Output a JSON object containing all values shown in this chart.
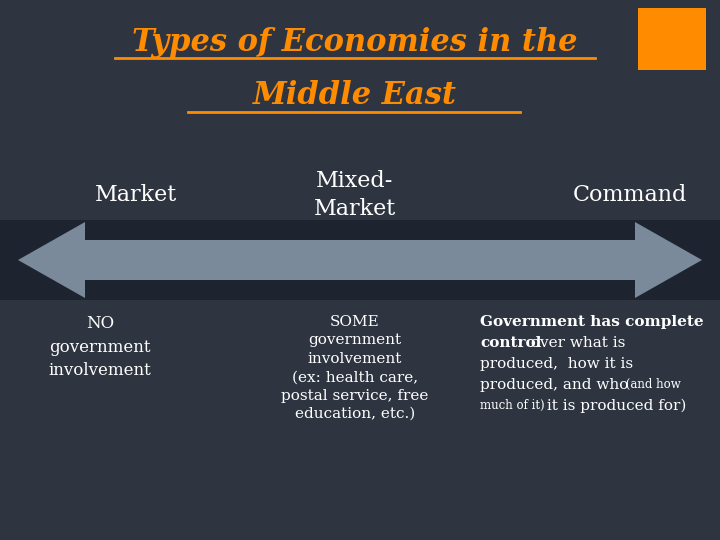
{
  "title_line1": "Types of Economies in the",
  "title_line2": "Middle East",
  "title_color": "#FF8C00",
  "bg_color": "#2E3440",
  "arrow_color": "#7A8A9A",
  "dark_band_color": "#1E2330",
  "label_market": "Market",
  "label_mixed": "Mixed-\nMarket",
  "label_command": "Command",
  "text_no_gov": "NO\ngovernment\ninvolvement",
  "text_some_gov": "SOME\ngovernment\ninvolvement\n(ex: health care,\npostal service, free\neducation, etc.)",
  "orange_box_color": "#FF8C00",
  "white": "#FFFFFF"
}
